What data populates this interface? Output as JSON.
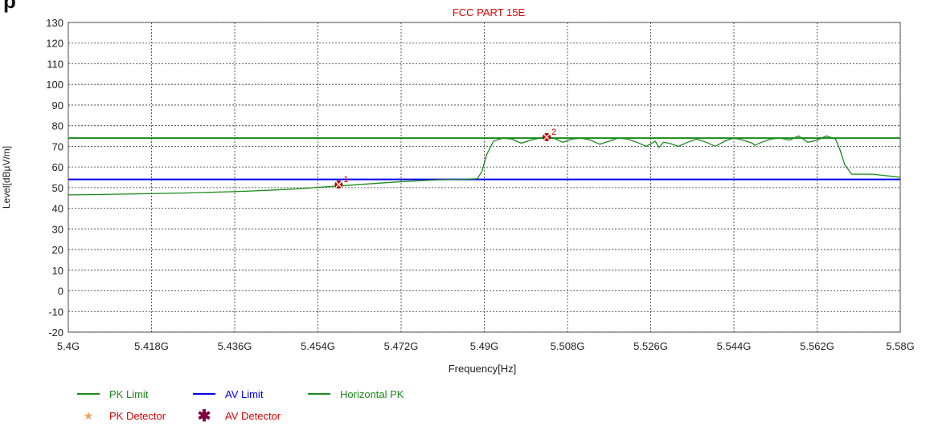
{
  "page": {
    "header_fragment": "p"
  },
  "chart_data": {
    "type": "line",
    "title": "FCC  PART 15E",
    "xlabel": "Frequency[Hz]",
    "ylabel": "Level[dBµV/m]",
    "xlim": [
      5.4,
      5.58
    ],
    "ylim": [
      -20,
      130
    ],
    "x_unit": "GHz",
    "x_ticks": [
      5.4,
      5.418,
      5.436,
      5.454,
      5.472,
      5.49,
      5.508,
      5.526,
      5.544,
      5.562,
      5.58
    ],
    "x_tick_labels": [
      "5.4G",
      "5.418G",
      "5.436G",
      "5.454G",
      "5.472G",
      "5.49G",
      "5.508G",
      "5.526G",
      "5.544G",
      "5.562G",
      "5.58G"
    ],
    "y_ticks": [
      130,
      120,
      110,
      100,
      90,
      80,
      70,
      60,
      50,
      40,
      30,
      20,
      10,
      0,
      -10,
      -20
    ],
    "grid": true,
    "legend_placement": "bottom-left",
    "series": [
      {
        "name": "PK Limit",
        "color": "#1a8a1a",
        "x": [
          5.4,
          5.58
        ],
        "y": [
          74,
          74
        ]
      },
      {
        "name": "AV Limit",
        "color": "#0000ee",
        "x": [
          5.4,
          5.58
        ],
        "y": [
          54,
          54
        ]
      },
      {
        "name": "Horizontal PK",
        "color": "#1a8a1a",
        "x": [
          5.4,
          5.405,
          5.41,
          5.415,
          5.42,
          5.425,
          5.43,
          5.435,
          5.44,
          5.445,
          5.45,
          5.455,
          5.46,
          5.465,
          5.47,
          5.475,
          5.48,
          5.485,
          5.4885,
          5.4895,
          5.4905,
          5.492,
          5.494,
          5.496,
          5.498,
          5.5,
          5.502,
          5.5035,
          5.505,
          5.507,
          5.509,
          5.511,
          5.513,
          5.515,
          5.517,
          5.519,
          5.521,
          5.523,
          5.525,
          5.527,
          5.5278,
          5.5288,
          5.53,
          5.532,
          5.534,
          5.536,
          5.538,
          5.54,
          5.542,
          5.544,
          5.546,
          5.548,
          5.5485,
          5.55,
          5.552,
          5.554,
          5.556,
          5.558,
          5.56,
          5.562,
          5.564,
          5.566,
          5.567,
          5.568,
          5.5695,
          5.572,
          5.574,
          5.576,
          5.578,
          5.58
        ],
        "y": [
          46.5,
          46.6,
          46.8,
          47.0,
          47.2,
          47.4,
          47.7,
          48.0,
          48.4,
          48.9,
          49.5,
          50.3,
          51.0,
          51.8,
          52.6,
          53.2,
          53.8,
          54.0,
          54.3,
          58,
          66,
          72.5,
          74,
          73.5,
          71.5,
          73,
          74,
          74.5,
          74,
          72,
          73.5,
          74,
          73,
          71,
          72.5,
          74,
          73.5,
          72,
          70,
          72.5,
          69.5,
          72,
          71.5,
          70,
          72,
          73.5,
          72,
          70,
          72.5,
          74,
          73,
          71.5,
          70.5,
          72,
          73.5,
          74,
          73,
          75,
          72,
          73,
          75,
          73.5,
          68,
          61,
          56.5,
          56.5,
          56.5,
          56,
          55.5,
          55
        ]
      }
    ],
    "markers": [
      {
        "label": "1",
        "x": 5.4585,
        "y": 51.5,
        "color": "#e00000"
      },
      {
        "label": "2",
        "x": 5.5035,
        "y": 74.5,
        "color": "#e00000"
      }
    ],
    "legend": [
      {
        "kind": "line",
        "label": "PK Limit",
        "color": "#1a8a1a",
        "text_color": "#1a8a1a"
      },
      {
        "kind": "line",
        "label": "AV Limit",
        "color": "#0000ee",
        "text_color": "#0000ee"
      },
      {
        "kind": "line",
        "label": "Horizontal PK",
        "color": "#1a8a1a",
        "text_color": "#1a8a1a"
      },
      {
        "kind": "star",
        "label": "PK Detector",
        "color": "#f0a060",
        "text_color": "#e00000"
      },
      {
        "kind": "asterisk",
        "label": "AV Detector",
        "color": "#800040",
        "text_color": "#e00000"
      }
    ],
    "colors": {
      "title": "#e00000",
      "axis_text": "#222222",
      "grid": "#222222"
    }
  }
}
